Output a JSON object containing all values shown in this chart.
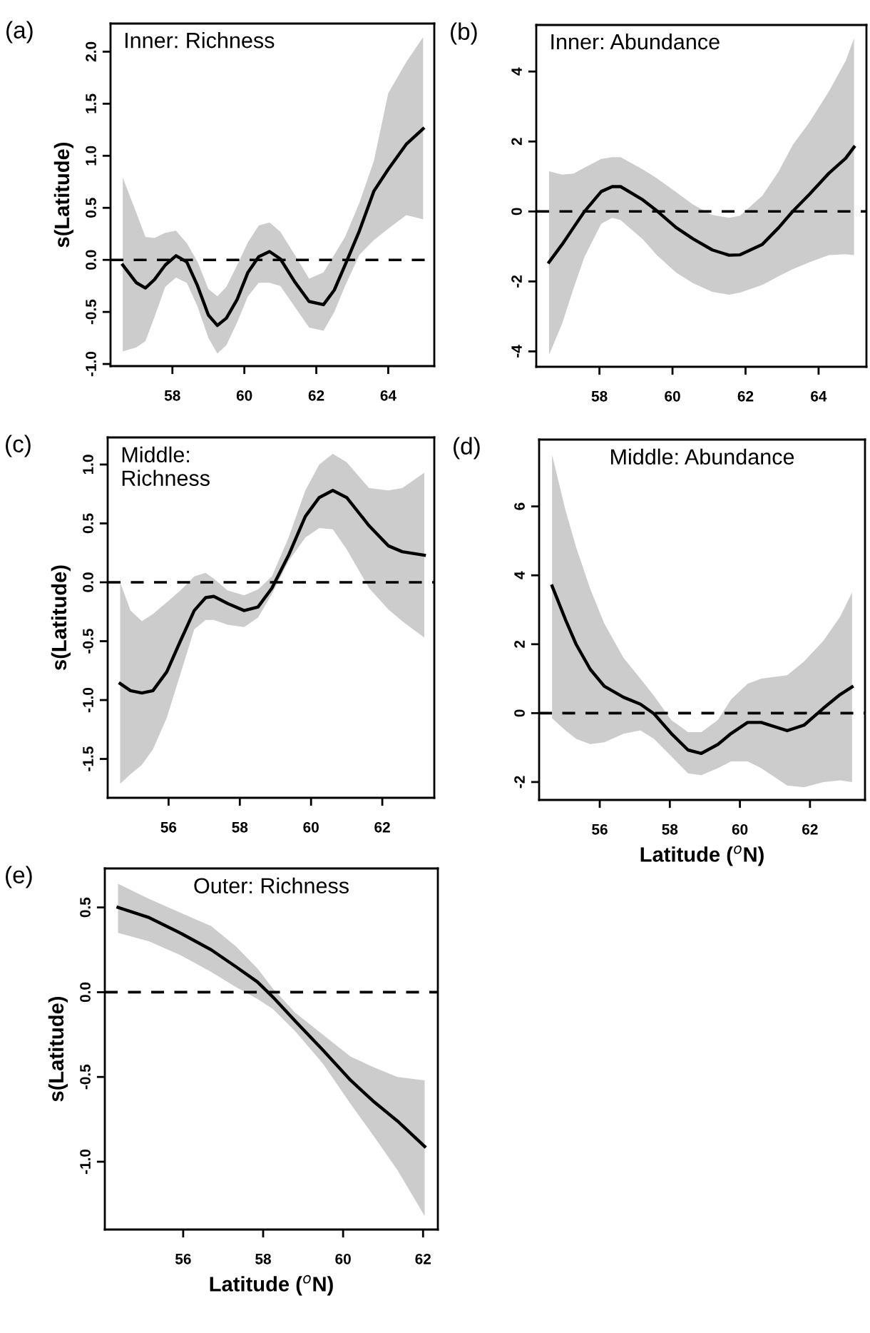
{
  "chart_data": [
    {
      "type": "line",
      "title": "Inner: Richness",
      "ylabel": "s(Latitude)",
      "annotations": [
        "(a)"
      ],
      "xlim": [
        56.28,
        65.28
      ],
      "ylim": [
        -1.02,
        2.27
      ],
      "xticks": [
        58,
        60,
        62,
        64
      ],
      "yticks": [
        {
          "value": -1.0,
          "label": "-1.0"
        },
        -0.5,
        {
          "value": 0.0,
          "label": "0.0"
        },
        0.5,
        {
          "value": 1.0,
          "label": "1.0"
        },
        1.5,
        {
          "value": 2.0,
          "label": "2.0"
        }
      ],
      "grid": false,
      "line_style": "solid",
      "ref_lines": [
        {
          "axis": "y",
          "value": 0,
          "line_style": "dashed",
          "color": "#000000"
        }
      ],
      "series": [
        {
          "color": "#000000",
          "x": [
            56.62,
            57.0,
            57.25,
            57.5,
            57.8,
            58.1,
            58.4,
            58.7,
            59.0,
            59.25,
            59.5,
            59.8,
            60.1,
            60.4,
            60.7,
            61.0,
            61.4,
            61.8,
            62.2,
            62.5,
            62.8,
            63.2,
            63.6,
            64.0,
            64.5,
            64.97
          ],
          "values": [
            -0.05,
            -0.22,
            -0.27,
            -0.19,
            -0.05,
            0.04,
            -0.02,
            -0.25,
            -0.53,
            -0.63,
            -0.56,
            -0.38,
            -0.12,
            0.03,
            0.08,
            0.01,
            -0.21,
            -0.4,
            -0.43,
            -0.29,
            -0.05,
            0.28,
            0.66,
            0.87,
            1.11,
            1.26
          ],
          "upper": [
            0.79,
            0.45,
            0.22,
            0.21,
            0.26,
            0.28,
            0.16,
            -0.02,
            -0.28,
            -0.35,
            -0.26,
            -0.05,
            0.17,
            0.33,
            0.36,
            0.27,
            0.05,
            -0.18,
            -0.12,
            0.05,
            0.22,
            0.55,
            0.95,
            1.6,
            1.9,
            2.14
          ],
          "lower": [
            -0.88,
            -0.84,
            -0.78,
            -0.55,
            -0.26,
            -0.17,
            -0.22,
            -0.45,
            -0.75,
            -0.9,
            -0.82,
            -0.6,
            -0.35,
            -0.22,
            -0.22,
            -0.25,
            -0.45,
            -0.65,
            -0.68,
            -0.5,
            -0.25,
            0.05,
            0.19,
            0.3,
            0.43,
            0.39
          ]
        }
      ]
    },
    {
      "type": "line",
      "title": "Inner: Abundance",
      "annotations": [
        "(b)"
      ],
      "xlim": [
        56.27,
        65.31
      ],
      "ylim": [
        -4.44,
        5.33
      ],
      "xticks": [
        58,
        60,
        62,
        64
      ],
      "yticks": [
        -4,
        -2,
        0,
        2,
        4
      ],
      "grid": false,
      "line_style": "solid",
      "ref_lines": [
        {
          "axis": "y",
          "value": 0,
          "line_style": "dashed",
          "color": "#000000"
        }
      ],
      "series": [
        {
          "color": "#000000",
          "x": [
            56.62,
            56.98,
            57.29,
            57.59,
            58.05,
            58.35,
            58.58,
            59.19,
            59.57,
            60.1,
            60.56,
            61.09,
            61.55,
            61.85,
            62.46,
            62.91,
            63.29,
            63.75,
            64.28,
            64.74,
            64.97
          ],
          "values": [
            -1.45,
            -0.94,
            -0.46,
            0.0,
            0.57,
            0.71,
            0.71,
            0.33,
            0.02,
            -0.46,
            -0.78,
            -1.1,
            -1.25,
            -1.24,
            -0.94,
            -0.46,
            0.0,
            0.49,
            1.09,
            1.52,
            1.84
          ],
          "upper": [
            1.15,
            1.05,
            1.08,
            1.25,
            1.5,
            1.55,
            1.55,
            1.2,
            0.95,
            0.55,
            0.2,
            -0.1,
            -0.18,
            -0.12,
            0.45,
            1.15,
            1.9,
            2.55,
            3.43,
            4.3,
            4.95
          ],
          "lower": [
            -4.1,
            -3.2,
            -2.2,
            -1.3,
            -0.35,
            -0.18,
            -0.25,
            -0.8,
            -1.25,
            -1.75,
            -2.05,
            -2.3,
            -2.38,
            -2.32,
            -2.1,
            -1.85,
            -1.65,
            -1.45,
            -1.25,
            -1.22,
            -1.25
          ]
        }
      ]
    },
    {
      "type": "line",
      "title": "Middle:\nRichness",
      "ylabel": "s(Latitude)",
      "annotations": [
        "(c)"
      ],
      "xlim": [
        54.29,
        63.46
      ],
      "ylim": [
        -1.83,
        1.23
      ],
      "xticks": [
        56,
        58,
        60,
        62
      ],
      "yticks": [
        -1.5,
        {
          "value": -1.0,
          "label": "-1.0"
        },
        -0.5,
        {
          "value": 0.0,
          "label": "0.0"
        },
        0.5,
        {
          "value": 1.0,
          "label": "1.0"
        }
      ],
      "grid": false,
      "line_style": "solid",
      "ref_lines": [
        {
          "axis": "y",
          "value": 0,
          "line_style": "dashed",
          "color": "#000000"
        }
      ],
      "series": [
        {
          "color": "#000000",
          "x": [
            54.64,
            54.93,
            55.25,
            55.56,
            55.95,
            56.33,
            56.72,
            57.04,
            57.27,
            57.66,
            58.12,
            58.51,
            58.9,
            59.37,
            59.84,
            60.23,
            60.61,
            61.0,
            61.63,
            62.17,
            62.56,
            63.18
          ],
          "values": [
            -0.86,
            -0.92,
            -0.94,
            -0.92,
            -0.76,
            -0.5,
            -0.24,
            -0.13,
            -0.12,
            -0.18,
            -0.24,
            -0.21,
            -0.05,
            0.23,
            0.56,
            0.72,
            0.78,
            0.72,
            0.48,
            0.31,
            0.26,
            0.23
          ],
          "upper": [
            0.0,
            -0.24,
            -0.33,
            -0.27,
            -0.17,
            -0.07,
            0.05,
            0.08,
            0.03,
            -0.07,
            -0.11,
            -0.06,
            0.05,
            0.38,
            0.78,
            1.0,
            1.09,
            1.02,
            0.8,
            0.78,
            0.8,
            0.93
          ],
          "lower": [
            -1.71,
            -1.63,
            -1.55,
            -1.42,
            -1.15,
            -0.78,
            -0.4,
            -0.32,
            -0.32,
            -0.36,
            -0.38,
            -0.3,
            -0.1,
            0.18,
            0.38,
            0.46,
            0.45,
            0.28,
            -0.05,
            -0.23,
            -0.33,
            -0.47
          ]
        }
      ]
    },
    {
      "type": "line",
      "title": "Middle: Abundance",
      "xlabel": "Latitude ($^{o}$N)",
      "annotations": [
        "(d)"
      ],
      "xlim": [
        54.27,
        63.57
      ],
      "ylim": [
        -2.52,
        7.94
      ],
      "xticks": [
        56,
        58,
        60,
        62
      ],
      "yticks": [
        -2,
        0,
        2,
        4,
        6
      ],
      "grid": false,
      "line_style": "solid",
      "ref_lines": [
        {
          "axis": "y",
          "value": 0,
          "line_style": "dashed",
          "color": "#000000"
        }
      ],
      "series": [
        {
          "color": "#000000",
          "x": [
            54.64,
            55.02,
            55.33,
            55.73,
            56.13,
            56.68,
            57.16,
            57.55,
            58.04,
            58.52,
            58.9,
            59.37,
            59.75,
            60.22,
            60.61,
            61.35,
            61.83,
            62.38,
            62.86,
            63.2
          ],
          "values": [
            3.69,
            2.72,
            1.99,
            1.27,
            0.78,
            0.46,
            0.26,
            -0.02,
            -0.59,
            -1.07,
            -1.17,
            -0.91,
            -0.59,
            -0.27,
            -0.27,
            -0.51,
            -0.35,
            0.14,
            0.54,
            0.76
          ],
          "upper": [
            7.5,
            5.9,
            4.8,
            3.6,
            2.6,
            1.6,
            1.0,
            0.5,
            -0.2,
            -0.55,
            -0.55,
            -0.2,
            0.4,
            0.85,
            1.0,
            1.1,
            1.5,
            2.1,
            2.8,
            3.5
          ],
          "lower": [
            -0.15,
            -0.5,
            -0.75,
            -0.9,
            -0.85,
            -0.6,
            -0.5,
            -0.75,
            -1.25,
            -1.75,
            -1.8,
            -1.6,
            -1.4,
            -1.4,
            -1.6,
            -2.1,
            -2.15,
            -2.0,
            -1.95,
            -2.0
          ]
        }
      ]
    },
    {
      "type": "line",
      "title": "Outer: Richness",
      "xlabel": "Latitude ($^{o}$N)",
      "ylabel": "s(Latitude)",
      "annotations": [
        "(e)"
      ],
      "xlim": [
        54.04,
        62.37
      ],
      "ylim": [
        -1.4,
        0.73
      ],
      "xticks": [
        56,
        58,
        60,
        62
      ],
      "yticks": [
        {
          "value": -1.0,
          "label": "-1.0"
        },
        -0.5,
        {
          "value": 0.0,
          "label": "0.0"
        },
        0.5
      ],
      "grid": false,
      "line_style": "solid",
      "ref_lines": [
        {
          "axis": "y",
          "value": 0,
          "line_style": "dashed",
          "color": "#000000"
        }
      ],
      "series": [
        {
          "color": "#000000",
          "x": [
            54.37,
            55.15,
            55.92,
            56.7,
            57.32,
            57.86,
            58.25,
            58.8,
            59.49,
            60.19,
            60.74,
            61.36,
            62.04
          ],
          "values": [
            0.5,
            0.44,
            0.35,
            0.25,
            0.15,
            0.06,
            -0.03,
            -0.17,
            -0.34,
            -0.52,
            -0.64,
            -0.76,
            -0.91
          ],
          "upper": [
            0.64,
            0.55,
            0.47,
            0.39,
            0.27,
            0.14,
            0.02,
            -0.12,
            -0.25,
            -0.38,
            -0.44,
            -0.5,
            -0.52
          ],
          "lower": [
            0.35,
            0.3,
            0.22,
            0.12,
            0.03,
            -0.04,
            -0.1,
            -0.23,
            -0.42,
            -0.66,
            -0.84,
            -1.05,
            -1.32
          ]
        }
      ]
    }
  ]
}
